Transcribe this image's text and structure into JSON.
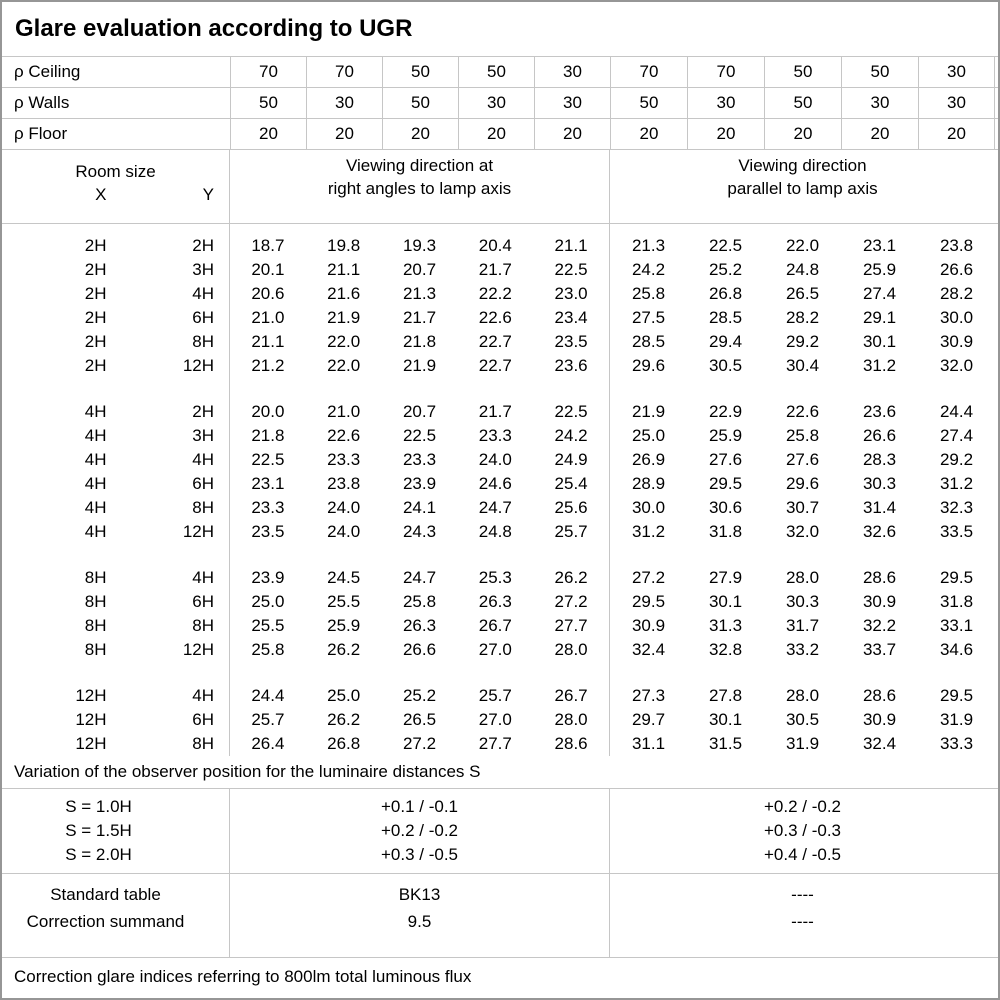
{
  "title": "Glare evaluation according to UGR",
  "reflectance_rows": [
    {
      "label": "ρ Ceiling",
      "values": [
        "70",
        "70",
        "50",
        "50",
        "30",
        "70",
        "70",
        "50",
        "50",
        "30"
      ]
    },
    {
      "label": "ρ Walls",
      "values": [
        "50",
        "30",
        "50",
        "30",
        "30",
        "50",
        "30",
        "50",
        "30",
        "30"
      ]
    },
    {
      "label": "ρ Floor",
      "values": [
        "20",
        "20",
        "20",
        "20",
        "20",
        "20",
        "20",
        "20",
        "20",
        "20"
      ]
    }
  ],
  "room_size_header": {
    "label": "Room size",
    "x": "X",
    "y": "Y"
  },
  "direction_headings": {
    "perpendicular": {
      "line1": "Viewing direction at",
      "line2": "right angles to lamp axis"
    },
    "parallel": {
      "line1": "Viewing direction",
      "line2": "parallel to lamp axis"
    }
  },
  "ugr_table": {
    "blocks": [
      {
        "rows": [
          {
            "x": "2H",
            "y": "2H",
            "values": [
              "18.7",
              "19.8",
              "19.3",
              "20.4",
              "21.1",
              "21.3",
              "22.5",
              "22.0",
              "23.1",
              "23.8"
            ]
          },
          {
            "x": "2H",
            "y": "3H",
            "values": [
              "20.1",
              "21.1",
              "20.7",
              "21.7",
              "22.5",
              "24.2",
              "25.2",
              "24.8",
              "25.9",
              "26.6"
            ]
          },
          {
            "x": "2H",
            "y": "4H",
            "values": [
              "20.6",
              "21.6",
              "21.3",
              "22.2",
              "23.0",
              "25.8",
              "26.8",
              "26.5",
              "27.4",
              "28.2"
            ]
          },
          {
            "x": "2H",
            "y": "6H",
            "values": [
              "21.0",
              "21.9",
              "21.7",
              "22.6",
              "23.4",
              "27.5",
              "28.5",
              "28.2",
              "29.1",
              "30.0"
            ]
          },
          {
            "x": "2H",
            "y": "8H",
            "values": [
              "21.1",
              "22.0",
              "21.8",
              "22.7",
              "23.5",
              "28.5",
              "29.4",
              "29.2",
              "30.1",
              "30.9"
            ]
          },
          {
            "x": "2H",
            "y": "12H",
            "values": [
              "21.2",
              "22.0",
              "21.9",
              "22.7",
              "23.6",
              "29.6",
              "30.5",
              "30.4",
              "31.2",
              "32.0"
            ]
          }
        ]
      },
      {
        "rows": [
          {
            "x": "4H",
            "y": "2H",
            "values": [
              "20.0",
              "21.0",
              "20.7",
              "21.7",
              "22.5",
              "21.9",
              "22.9",
              "22.6",
              "23.6",
              "24.4"
            ]
          },
          {
            "x": "4H",
            "y": "3H",
            "values": [
              "21.8",
              "22.6",
              "22.5",
              "23.3",
              "24.2",
              "25.0",
              "25.9",
              "25.8",
              "26.6",
              "27.4"
            ]
          },
          {
            "x": "4H",
            "y": "4H",
            "values": [
              "22.5",
              "23.3",
              "23.3",
              "24.0",
              "24.9",
              "26.9",
              "27.6",
              "27.6",
              "28.3",
              "29.2"
            ]
          },
          {
            "x": "4H",
            "y": "6H",
            "values": [
              "23.1",
              "23.8",
              "23.9",
              "24.6",
              "25.4",
              "28.9",
              "29.5",
              "29.6",
              "30.3",
              "31.2"
            ]
          },
          {
            "x": "4H",
            "y": "8H",
            "values": [
              "23.3",
              "24.0",
              "24.1",
              "24.7",
              "25.6",
              "30.0",
              "30.6",
              "30.7",
              "31.4",
              "32.3"
            ]
          },
          {
            "x": "4H",
            "y": "12H",
            "values": [
              "23.5",
              "24.0",
              "24.3",
              "24.8",
              "25.7",
              "31.2",
              "31.8",
              "32.0",
              "32.6",
              "33.5"
            ]
          }
        ]
      },
      {
        "rows": [
          {
            "x": "8H",
            "y": "4H",
            "values": [
              "23.9",
              "24.5",
              "24.7",
              "25.3",
              "26.2",
              "27.2",
              "27.9",
              "28.0",
              "28.6",
              "29.5"
            ]
          },
          {
            "x": "8H",
            "y": "6H",
            "values": [
              "25.0",
              "25.5",
              "25.8",
              "26.3",
              "27.2",
              "29.5",
              "30.1",
              "30.3",
              "30.9",
              "31.8"
            ]
          },
          {
            "x": "8H",
            "y": "8H",
            "values": [
              "25.5",
              "25.9",
              "26.3",
              "26.7",
              "27.7",
              "30.9",
              "31.3",
              "31.7",
              "32.2",
              "33.1"
            ]
          },
          {
            "x": "8H",
            "y": "12H",
            "values": [
              "25.8",
              "26.2",
              "26.6",
              "27.0",
              "28.0",
              "32.4",
              "32.8",
              "33.2",
              "33.7",
              "34.6"
            ]
          }
        ]
      },
      {
        "rows": [
          {
            "x": "12H",
            "y": "4H",
            "values": [
              "24.4",
              "25.0",
              "25.2",
              "25.7",
              "26.7",
              "27.3",
              "27.8",
              "28.0",
              "28.6",
              "29.5"
            ]
          },
          {
            "x": "12H",
            "y": "6H",
            "values": [
              "25.7",
              "26.2",
              "26.5",
              "27.0",
              "28.0",
              "29.7",
              "30.1",
              "30.5",
              "30.9",
              "31.9"
            ]
          },
          {
            "x": "12H",
            "y": "8H",
            "values": [
              "26.4",
              "26.8",
              "27.2",
              "27.7",
              "28.6",
              "31.1",
              "31.5",
              "31.9",
              "32.4",
              "33.3"
            ]
          }
        ]
      }
    ]
  },
  "variation": {
    "note": "Variation of the observer position for the luminaire distances S",
    "rows": [
      {
        "label": "S = 1.0H",
        "perpendicular": "+0.1 / -0.1",
        "parallel": "+0.2 / -0.2"
      },
      {
        "label": "S = 1.5H",
        "perpendicular": "+0.2 / -0.2",
        "parallel": "+0.3 / -0.3"
      },
      {
        "label": "S = 2.0H",
        "perpendicular": "+0.3 / -0.5",
        "parallel": "+0.4 / -0.5"
      }
    ]
  },
  "summary": {
    "rows": [
      {
        "label": "Standard table",
        "perpendicular": "BK13",
        "parallel": "----"
      },
      {
        "label": "Correction summand",
        "perpendicular": "9.5",
        "parallel": "----"
      }
    ]
  },
  "footer_note": "Correction glare indices referring to 800lm total luminous flux"
}
